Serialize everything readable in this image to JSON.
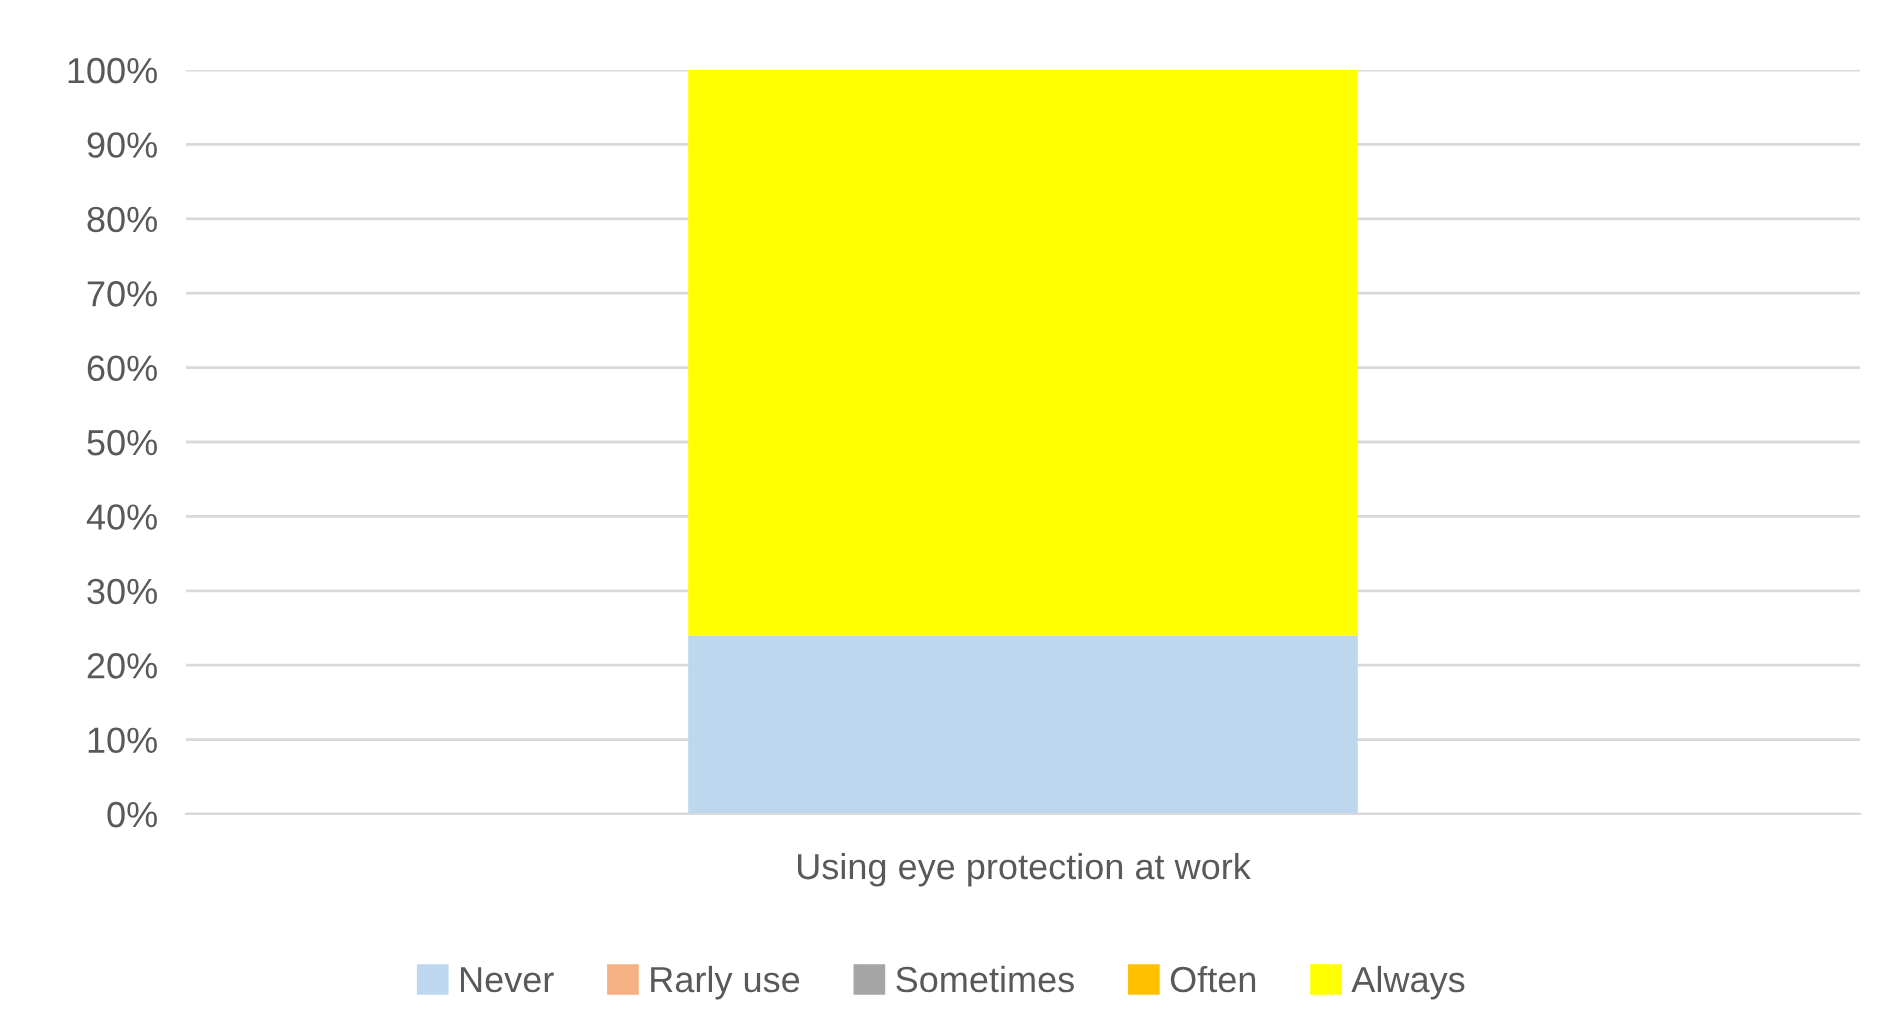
{
  "chart_data": {
    "type": "bar",
    "stacked": true,
    "categories": [
      "Using eye protection at work"
    ],
    "series": [
      {
        "name": "Never",
        "color": "#bdd7ee",
        "values": [
          24
        ]
      },
      {
        "name": "Rarly use",
        "color": "#f4b183",
        "values": [
          0
        ]
      },
      {
        "name": "Sometimes",
        "color": "#a5a5a5",
        "values": [
          0
        ]
      },
      {
        "name": "Often",
        "color": "#ffc000",
        "values": [
          0
        ]
      },
      {
        "name": "Always",
        "color": "#ffff00",
        "values": [
          76
        ]
      }
    ],
    "ylim": [
      0,
      100
    ],
    "yticks": [
      {
        "value": 0,
        "label": "0%"
      },
      {
        "value": 10,
        "label": "10%"
      },
      {
        "value": 20,
        "label": "20%"
      },
      {
        "value": 30,
        "label": "30%"
      },
      {
        "value": 40,
        "label": "40%"
      },
      {
        "value": 50,
        "label": "50%"
      },
      {
        "value": 60,
        "label": "60%"
      },
      {
        "value": 70,
        "label": "70%"
      },
      {
        "value": 80,
        "label": "80%"
      },
      {
        "value": 90,
        "label": "90%"
      },
      {
        "value": 100,
        "label": "100%"
      }
    ],
    "grid": "y",
    "legend": "bottom"
  }
}
